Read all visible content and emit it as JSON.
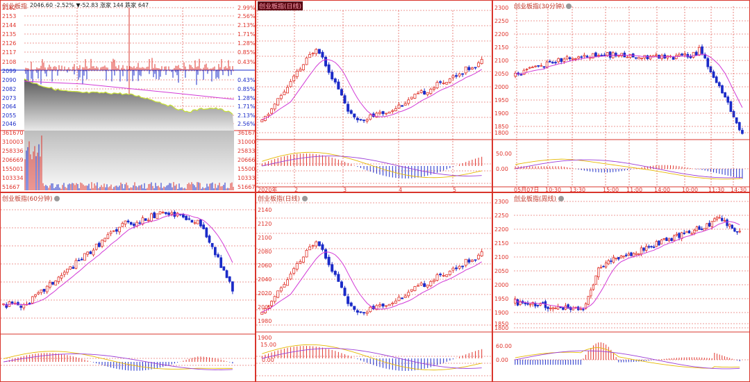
{
  "colors": {
    "up": "#e0332b",
    "down": "#1b2bc8",
    "ma": "#d23ad6",
    "grid": "#d9342b",
    "dif": "#e6b800",
    "dea": "#9b3bd6"
  },
  "p1": {
    "title": "创业板指",
    "info": "2046.60 -2.52% ▼-52.83 涨家 144 跌家 647",
    "price_left": [
      "2162",
      "2153",
      "2144",
      "2135",
      "2126",
      "2117",
      "2108",
      "2099",
      "2090",
      "2082",
      "2073",
      "2064",
      "2055",
      "2046"
    ],
    "pct_right": [
      "2.99%",
      "2.56%",
      "2.13%",
      "1.71%",
      "1.28%",
      "0.85%",
      "0.43%",
      "",
      "0.43%",
      "0.85%",
      "1.28%",
      "1.71%",
      "2.13%",
      "2.56%"
    ],
    "vol_left": [
      "361670",
      "310003",
      "258336",
      "206669",
      "155001",
      "103334",
      "51667"
    ],
    "vol_right": [
      "361670",
      "310003",
      "258336",
      "206669",
      "155001",
      "103334",
      "51667"
    ]
  },
  "p2": {
    "title": "创业板指(日线)",
    "yticks": [],
    "macd_ticks": [],
    "xlabels": [
      "2020年",
      "2",
      "3",
      "4",
      "5"
    ]
  },
  "p3": {
    "title": "创业板指(30分钟)",
    "yticks": [
      "2300",
      "2250",
      "2200",
      "2150",
      "2100",
      "2050",
      "2000",
      "1950",
      "1900",
      "1850",
      "1800"
    ],
    "macd_ticks": [
      "50.00",
      "0.00"
    ],
    "xlabels": [
      "05月07日",
      "10:30",
      "13:30",
      "15:00",
      "11:00",
      "14:00",
      "10:00",
      "11:30",
      "14:30"
    ]
  },
  "p4": {
    "title": "创业板指(60分钟)"
  },
  "p5": {
    "title": "创业板指(日线)",
    "yticks": [
      "2140",
      "2120",
      "2100",
      "2080",
      "2060",
      "2040",
      "2020",
      "2000",
      "1980",
      "1900"
    ],
    "macd_ticks": [
      "15.00",
      "0.00"
    ]
  },
  "p6": {
    "title": "创业板指(周线)",
    "yticks": [
      "2300",
      "2250",
      "2200",
      "2150",
      "2100",
      "2050",
      "2000",
      "1950",
      "1900",
      "1850",
      "1800"
    ],
    "macd_ticks": [
      "60.00",
      "0.00"
    ]
  }
}
